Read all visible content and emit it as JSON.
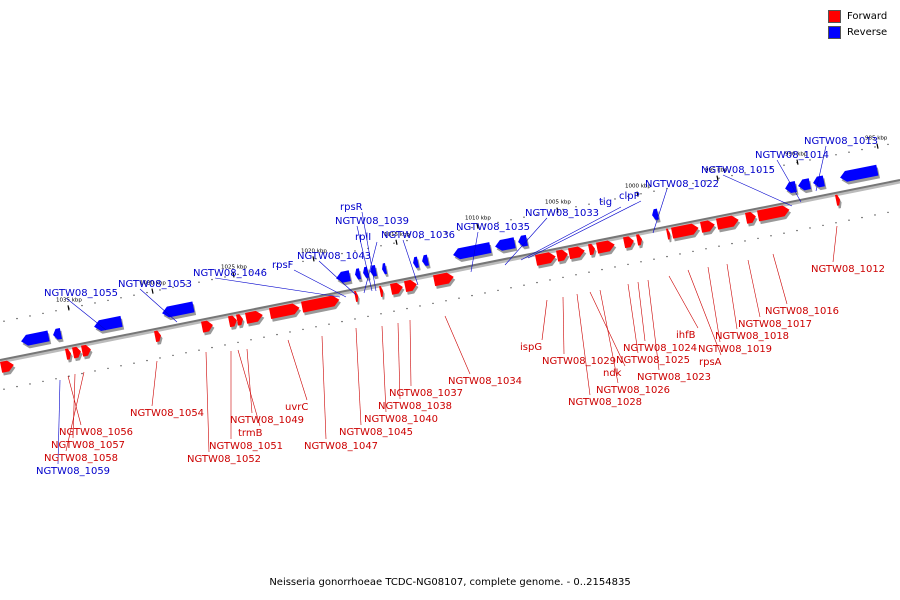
{
  "legend": {
    "items": [
      {
        "label": "Forward",
        "color": "#ff0000"
      },
      {
        "label": "Reverse",
        "color": "#0000ff"
      }
    ]
  },
  "caption": "Neisseria gonorrhoeae TCDC-NG08107, complete genome. - 0..2154835",
  "colors": {
    "forward": "#ff0000",
    "reverse": "#0000ff",
    "forward_label": "#cc0000",
    "reverse_label": "#0000cc",
    "backbone": "#777777"
  },
  "ticks": [
    "1035 kbp",
    "1030 kbp",
    "1025 kbp",
    "1020 kbp",
    "1015 kbp",
    "1010 kbp",
    "1005 kbp",
    "1000 kbp",
    "995 kbp",
    "990 kbp",
    "985 kbp"
  ],
  "genes": {
    "reverse": [
      "NGTW08_1055",
      "NGTW08_1053",
      "NGTW08_1046",
      "rpsF",
      "NGTW08_1043",
      "rplI",
      "NGTW08_1039",
      "rpsR",
      "NGTW08_1036",
      "NGTW08_1035",
      "NGTW08_1033",
      "tig",
      "clpP",
      "NGTW08_1022",
      "NGTW08_1015",
      "NGTW08_1014",
      "NGTW08_1013",
      "NGTW08_1059"
    ],
    "forward": [
      "NGTW08_1056",
      "NGTW08_1057",
      "NGTW08_1058",
      "NGTW08_1054",
      "NGTW08_1052",
      "NGTW08_1051",
      "trmB",
      "NGTW08_1049",
      "uvrC",
      "NGTW08_1047",
      "NGTW08_1045",
      "NGTW08_1040",
      "NGTW08_1038",
      "NGTW08_1037",
      "NGTW08_1034",
      "ispG",
      "NGTW08_1029",
      "NGTW08_1028",
      "ndk",
      "NGTW08_1026",
      "NGTW08_1025",
      "NGTW08_1024",
      "NGTW08_1023",
      "ihfB",
      "rpsA",
      "NGTW08_1019",
      "NGTW08_1018",
      "NGTW08_1017",
      "NGTW08_1016",
      "NGTW08_1012"
    ]
  }
}
